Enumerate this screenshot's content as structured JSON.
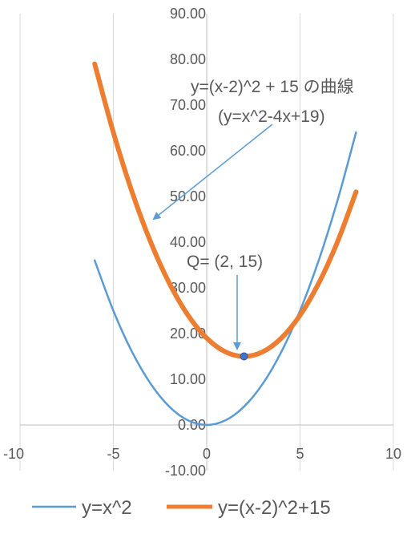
{
  "chart_data": {
    "type": "line",
    "x_range": [
      -10,
      10
    ],
    "y_range": [
      -10,
      90
    ],
    "x_ticks": [
      -10,
      -5,
      0,
      5,
      10
    ],
    "x_tick_labels": [
      "-10",
      "-5",
      "0",
      "5",
      "10"
    ],
    "y_ticks": [
      -10,
      0,
      10,
      20,
      30,
      40,
      50,
      60,
      70,
      80,
      90
    ],
    "y_tick_labels": [
      "-10.00",
      "0.00",
      "10.00",
      "20.00",
      "30.00",
      "40.00",
      "50.00",
      "60.00",
      "70.00",
      "80.00",
      "90.00"
    ],
    "grid": "vertical",
    "series": [
      {
        "name": "y=x^2",
        "color": "#5B9BD5",
        "x": [
          -6,
          -5,
          -4,
          -3,
          -2,
          -1,
          0,
          1,
          2,
          3,
          4,
          5,
          6,
          7,
          8
        ],
        "y": [
          36,
          25,
          16,
          9,
          4,
          1,
          0,
          1,
          4,
          9,
          16,
          25,
          36,
          49,
          64
        ]
      },
      {
        "name": "y=(x-2)^2+15",
        "color": "#ED7D31",
        "x": [
          -6,
          -5,
          -4,
          -3,
          -2,
          -1,
          0,
          1,
          2,
          3,
          4,
          5,
          6,
          7,
          8
        ],
        "y": [
          79,
          64,
          51,
          40,
          31,
          24,
          19,
          16,
          15,
          16,
          19,
          24,
          31,
          40,
          51
        ]
      }
    ],
    "point": {
      "x": 2,
      "y": 15,
      "color": "#4472C4"
    },
    "annotations": [
      {
        "line1": "y=(x-2)^2 + 15 の曲線",
        "line2": "(y=x^2-4x+19)"
      },
      {
        "text": "Q= (2, 15)"
      }
    ],
    "legend": {
      "position": "bottom",
      "items": [
        "y=x^2",
        "y=(x-2)^2+15"
      ]
    }
  }
}
